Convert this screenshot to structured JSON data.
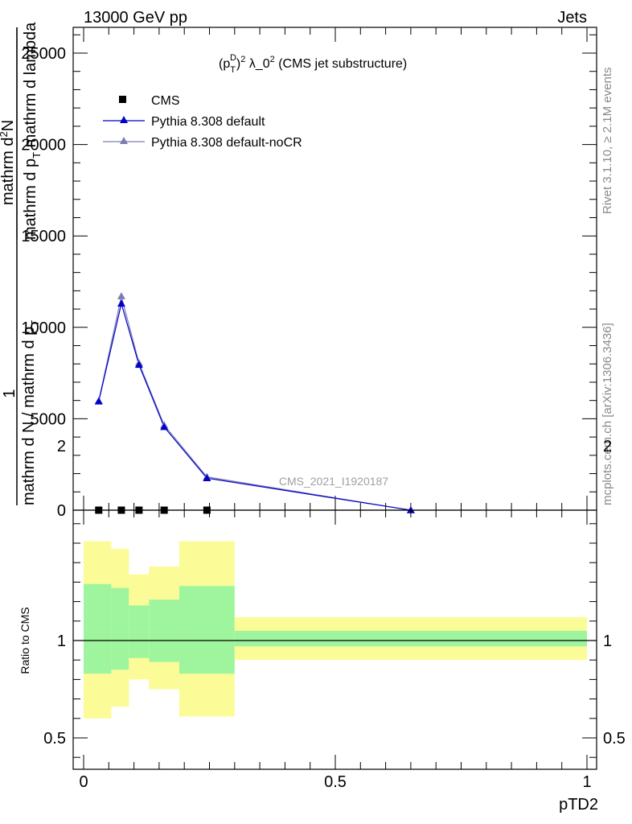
{
  "header": {
    "left": "13000 GeV pp",
    "right": "Jets"
  },
  "plot_title_parts": {
    "p": "p",
    "T": "T",
    "D": "D",
    "two": "2",
    "rest": "λ_0",
    "tail": "(CMS jet substructure)"
  },
  "side_labels": {
    "rivet": "Rivet 3.1.10, ≥ 2.1M events",
    "mcplots": "mcplots.cern.ch [arXiv:1306.3436]"
  },
  "watermark": "CMS_2021_I1920187",
  "y_axis_label_lines": {
    "one": "1",
    "den": "mathrm d N / mathrm d p",
    "den_sub": "T",
    "num": "mathrm d",
    "num_sup": "2",
    "num_rest": "N",
    "num_den": "mathrm d p",
    "num_den_sub": "T",
    "num_den_rest": " mathrm d lambda"
  },
  "ratio_ylabel": "Ratio to CMS",
  "colors": {
    "cms": "#000000",
    "default": "#0000c8",
    "nocr": "#7c7cb4",
    "band_inner": "#9ef59e",
    "band_outer": "#fbfb98"
  },
  "chart_data": [
    {
      "type": "line",
      "panel": "main",
      "xlabel": "pTD2",
      "xlim": [
        0,
        1
      ],
      "ylim": [
        0,
        26000
      ],
      "yticks": [
        0,
        5000,
        10000,
        15000,
        20000,
        25000
      ],
      "ytick_labels": [
        "0",
        "5000",
        "10000",
        "15000",
        "20000",
        "25000"
      ],
      "legend_position": "top-left",
      "series": [
        {
          "name": "CMS",
          "marker": "square",
          "x": [
            0.03,
            0.075,
            0.11,
            0.16,
            0.245
          ],
          "y": [
            0,
            0,
            0,
            0,
            0
          ]
        },
        {
          "name": "Pythia 8.308 default",
          "marker": "triangle",
          "x": [
            0.03,
            0.075,
            0.11,
            0.16,
            0.245,
            0.65
          ],
          "y": [
            5950,
            11300,
            7950,
            4550,
            1750,
            0
          ]
        },
        {
          "name": "Pythia 8.308 default-noCR",
          "marker": "triangle",
          "x": [
            0.03,
            0.075,
            0.11,
            0.16,
            0.245,
            0.65
          ],
          "y": [
            5980,
            11700,
            8050,
            4650,
            1820,
            0
          ]
        }
      ]
    },
    {
      "type": "area",
      "panel": "ratio",
      "ylabel": "Ratio to CMS",
      "xlim": [
        0,
        1
      ],
      "ylim": [
        0.3,
        2.3
      ],
      "xticks": [
        0,
        0.5,
        1
      ],
      "xtick_labels": [
        "0",
        "0.5",
        "1"
      ],
      "yticks": [
        0.5,
        1,
        2
      ],
      "ytick_labels": [
        "0.5",
        "1",
        "2"
      ],
      "bins": [
        [
          0,
          0.055
        ],
        [
          0.055,
          0.09
        ],
        [
          0.09,
          0.13
        ],
        [
          0.13,
          0.19
        ],
        [
          0.19,
          0.3
        ],
        [
          0.3,
          1.0
        ]
      ],
      "inner_band": [
        [
          0.83,
          1.29
        ],
        [
          0.85,
          1.27
        ],
        [
          0.91,
          1.18
        ],
        [
          0.89,
          1.21
        ],
        [
          0.83,
          1.28
        ],
        [
          0.97,
          1.05
        ]
      ],
      "outer_band": [
        [
          0.6,
          1.51
        ],
        [
          0.66,
          1.47
        ],
        [
          0.8,
          1.34
        ],
        [
          0.75,
          1.38
        ],
        [
          0.61,
          1.51
        ],
        [
          0.9,
          1.12
        ]
      ],
      "reference_line": 1
    }
  ]
}
